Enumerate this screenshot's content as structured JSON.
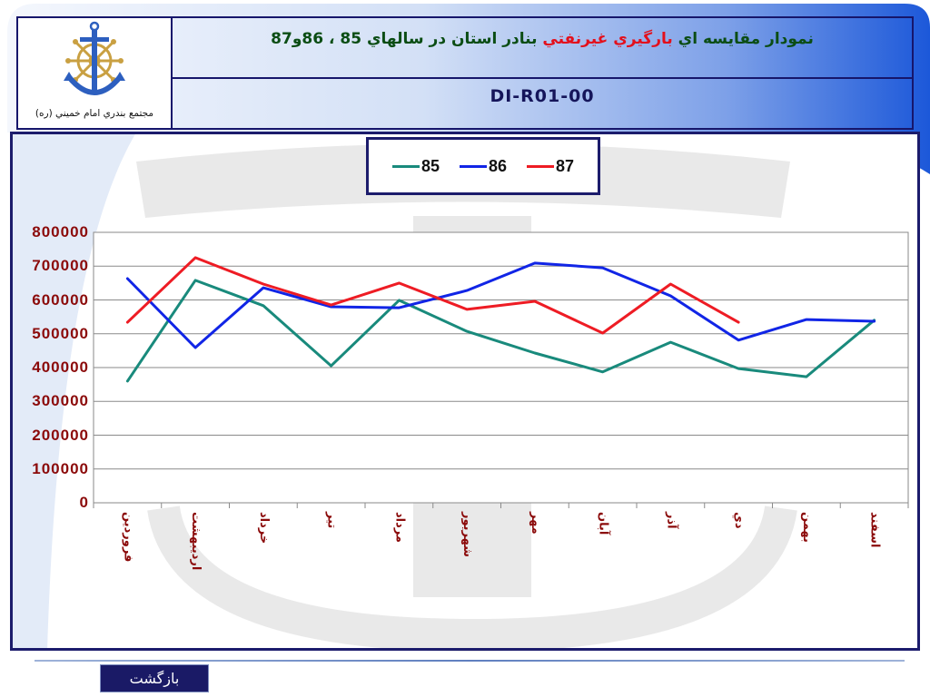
{
  "header": {
    "logo_caption": "مجتمع بندري امام خميني (ره)",
    "title_part1": "نمودار مقايسه اي",
    "title_part2": "بارگيري غيرنفتي",
    "title_part3": "بنادر استان در سالهاي 85 ، 86و87",
    "doc_code": "DI-R01-00"
  },
  "icons": {
    "logo": "anchor-ship-wheel-logo",
    "watermark": "anchor-watermark"
  },
  "colors": {
    "frame_navy": "#16166b",
    "title_green": "#0b4d14",
    "title_red": "#e3101c",
    "axis_labels": "#8b0a0a",
    "banner_blue": "#1c58d9",
    "button_navy": "#1a1a66"
  },
  "footer": {
    "back_button_label": "بازگشت"
  },
  "chart_data": {
    "type": "line",
    "categories": [
      "فروردين",
      "ارديبهشت",
      "خرداد",
      "تير",
      "مرداد",
      "شهريور",
      "مهر",
      "آبان",
      "آذر",
      "دي",
      "بهمن",
      "اسفند"
    ],
    "series": [
      {
        "name": "85",
        "color": "#198a7c",
        "values": [
          360000,
          658000,
          583000,
          405000,
          599000,
          507000,
          443000,
          387000,
          475000,
          397000,
          373000,
          540000
        ]
      },
      {
        "name": "86",
        "color": "#1125e6",
        "values": [
          663000,
          459000,
          636000,
          580000,
          577000,
          628000,
          709000,
          695000,
          612000,
          481000,
          542000,
          537000
        ]
      },
      {
        "name": "87",
        "color": "#ee1c24",
        "values": [
          534000,
          725000,
          647000,
          585000,
          650000,
          572000,
          596000,
          502000,
          647000,
          534000,
          null,
          null
        ]
      }
    ],
    "ylim": [
      0,
      800000
    ],
    "y_ticks": [
      800000,
      700000,
      600000,
      500000,
      400000,
      300000,
      200000,
      100000,
      0
    ],
    "grid": true,
    "legend_position": "top"
  }
}
